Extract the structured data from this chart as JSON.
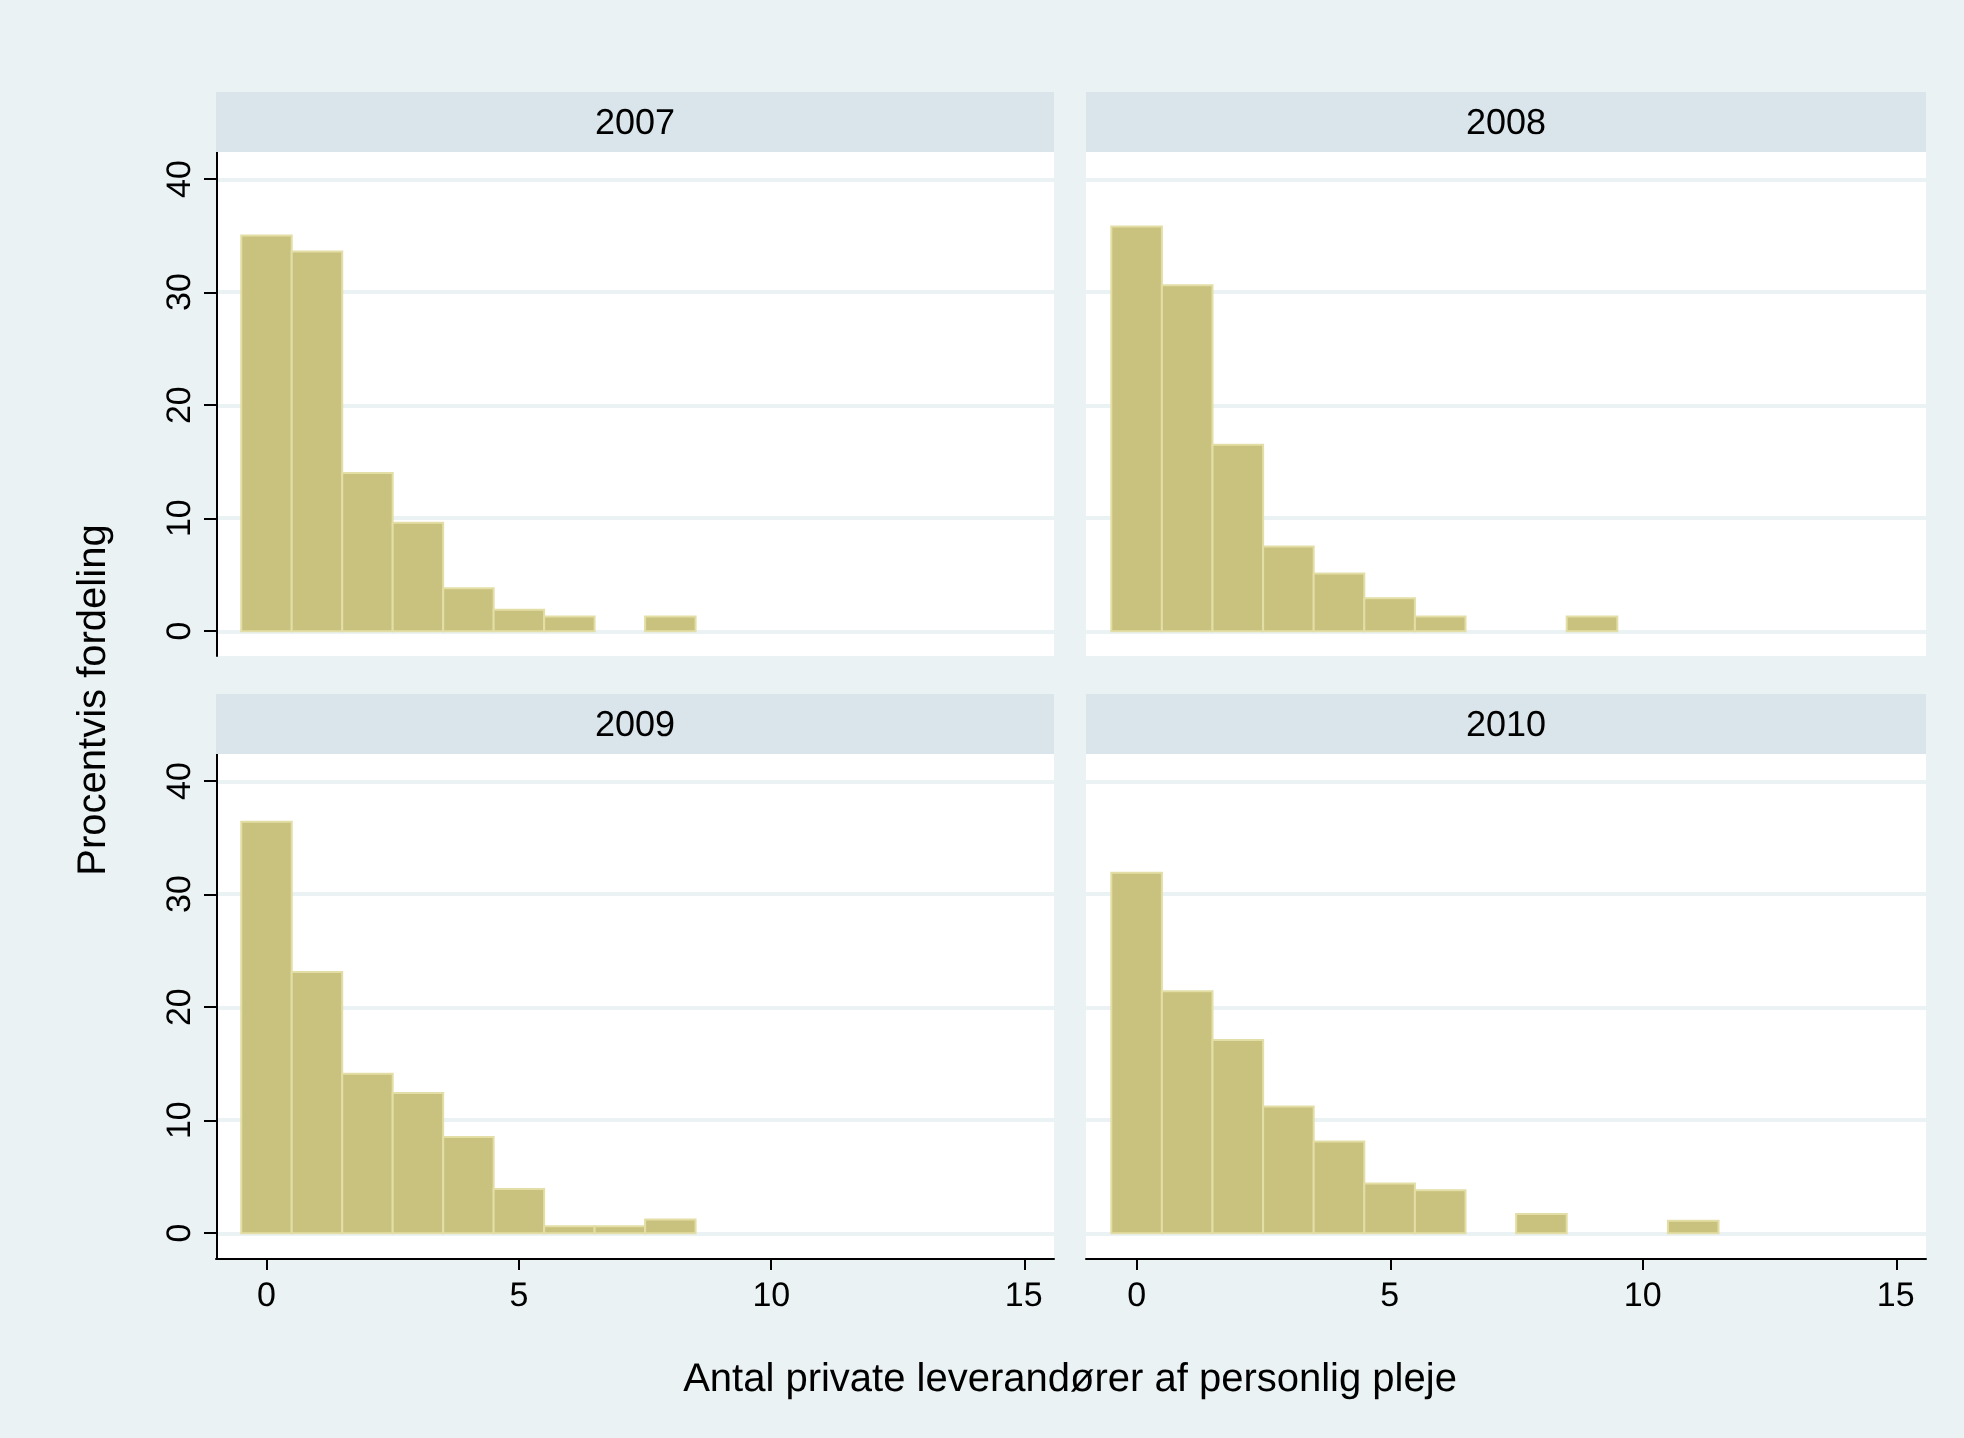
{
  "chart_data": [
    {
      "type": "histogram",
      "title": "2007",
      "ylabel": "Procentvis fordeling",
      "color": "#c9c27f",
      "bins": [
        -0.5,
        0.5,
        1.5,
        2.5,
        3.5,
        4.5,
        5.5,
        6.5,
        7.5,
        8.5
      ],
      "values": [
        35.0,
        33.6,
        14.0,
        9.6,
        3.8,
        1.9,
        1.3,
        0,
        1.3
      ],
      "xlim": [
        -1,
        15.6
      ],
      "xticks": [
        0,
        5,
        10,
        15
      ],
      "ylim": [
        -2.2,
        42.4
      ],
      "yticks": [
        0,
        10,
        20,
        30,
        40
      ],
      "grid": "y",
      "tick_labels": "y"
    },
    {
      "type": "histogram",
      "title": "2008",
      "color": "#c9c27f",
      "bins": [
        -0.5,
        0.5,
        1.5,
        2.5,
        3.5,
        4.5,
        5.5,
        6.5,
        7.5,
        8.5,
        9.5
      ],
      "values": [
        35.8,
        30.6,
        16.5,
        7.5,
        5.1,
        2.9,
        1.3,
        0,
        0,
        1.3
      ],
      "xlim": [
        -1,
        15.6
      ],
      "xticks": [
        0,
        5,
        10,
        15
      ],
      "ylim": [
        -2.2,
        42.4
      ],
      "yticks": [
        0,
        10,
        20,
        30,
        40
      ],
      "grid": "y",
      "tick_labels": false
    },
    {
      "type": "histogram",
      "title": "2009",
      "xlabel": "Antal private leverandører af personlig pleje",
      "color": "#c9c27f",
      "bins": [
        -0.5,
        0.5,
        1.5,
        2.5,
        3.5,
        4.5,
        5.5,
        6.5,
        7.5,
        8.5
      ],
      "values": [
        36.4,
        23.1,
        14.1,
        12.4,
        8.5,
        3.9,
        0.6,
        0.6,
        1.2
      ],
      "xlim": [
        -1,
        15.6
      ],
      "xticks": [
        0,
        5,
        10,
        15
      ],
      "ylim": [
        -2.2,
        42.4
      ],
      "yticks": [
        0,
        10,
        20,
        30,
        40
      ],
      "grid": "y"
    },
    {
      "type": "histogram",
      "title": "2010",
      "color": "#c9c27f",
      "bins": [
        -0.5,
        0.5,
        1.5,
        2.5,
        3.5,
        4.5,
        5.5,
        6.5,
        7.5,
        8.5,
        9.5,
        10.5,
        11.5
      ],
      "values": [
        31.9,
        21.4,
        17.1,
        11.2,
        8.1,
        4.4,
        3.8,
        0,
        1.7,
        0,
        0,
        1.1
      ],
      "xlim": [
        -1,
        15.6
      ],
      "xticks": [
        0,
        5,
        10,
        15
      ],
      "ylim": [
        -2.2,
        42.4
      ],
      "yticks": [
        0,
        10,
        20,
        30,
        40
      ],
      "grid": "y",
      "tick_labels": "x"
    }
  ]
}
